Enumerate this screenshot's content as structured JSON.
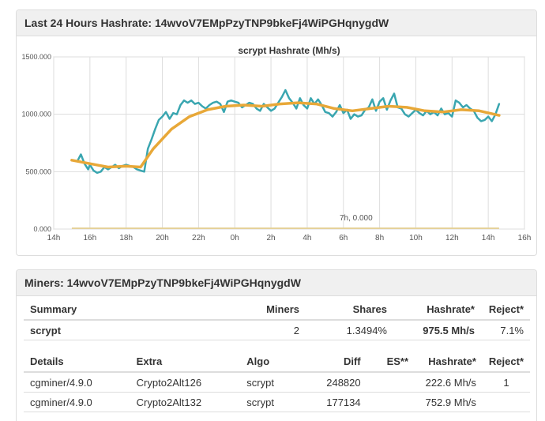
{
  "hashrate_panel": {
    "title": "Last 24 Hours Hashrate: 14wvoV7EMpPzyTNP9bkeFj4WiPGHqnygdW"
  },
  "miners_panel": {
    "title": "Miners: 14wvoV7EMpPzyTNP9bkeFj4WiPGHqnygdW",
    "summary_headers": [
      "Summary",
      "Miners",
      "Shares",
      "Hashrate*",
      "Reject*"
    ],
    "summary_row": {
      "name": "scrypt",
      "miners": "2",
      "shares": "1.3494%",
      "hashrate": "975.5 Mh/s",
      "reject": "7.1%"
    },
    "detail_headers": [
      "Details",
      "Extra",
      "Algo",
      "Diff",
      "ES**",
      "Hashrate*",
      "Reject*"
    ],
    "detail_rows": [
      {
        "details": "cgminer/4.9.0",
        "extra": "Crypto2Alt126",
        "algo": "scrypt",
        "diff": "248820",
        "es": "",
        "hashrate": "222.6 Mh/s",
        "reject": "1"
      },
      {
        "details": "cgminer/4.9.0",
        "extra": "Crypto2Alt132",
        "algo": "scrypt",
        "diff": "177134",
        "es": "",
        "hashrate": "752.9 Mh/s",
        "reject": ""
      }
    ]
  },
  "chart_data": {
    "type": "line",
    "title": "scrypt Hashrate (Mh/s)",
    "xlim": [
      14,
      40
    ],
    "ylim": [
      0,
      1500
    ],
    "x_ticks": [
      "14h",
      "16h",
      "18h",
      "20h",
      "22h",
      "0h",
      "2h",
      "4h",
      "6h",
      "8h",
      "10h",
      "12h",
      "14h",
      "16h"
    ],
    "y_ticks": [
      "0.000",
      "500.000",
      "1000.000",
      "1500.000"
    ],
    "grid": true,
    "annotation": {
      "text": "7h, 0.000",
      "x": 30.7,
      "y": 0
    },
    "colors": {
      "series": "#3aa6b0",
      "average": "#e8a838",
      "zero": "#e5d29a"
    },
    "series": [
      {
        "values": [
          [
            15,
            600
          ],
          [
            15.3,
            590
          ],
          [
            15.5,
            650
          ],
          [
            15.7,
            570
          ],
          [
            15.9,
            520
          ],
          [
            16,
            560
          ],
          [
            16.2,
            510
          ],
          [
            16.4,
            490
          ],
          [
            16.6,
            500
          ],
          [
            16.8,
            540
          ],
          [
            17,
            520
          ],
          [
            17.2,
            540
          ],
          [
            17.4,
            560
          ],
          [
            17.6,
            530
          ],
          [
            17.8,
            550
          ],
          [
            18,
            560
          ],
          [
            18.2,
            550
          ],
          [
            18.4,
            540
          ],
          [
            18.6,
            520
          ],
          [
            18.8,
            510
          ],
          [
            19,
            500
          ],
          [
            19.2,
            700
          ],
          [
            19.4,
            780
          ],
          [
            19.6,
            870
          ],
          [
            19.8,
            950
          ],
          [
            20,
            980
          ],
          [
            20.2,
            1020
          ],
          [
            20.4,
            960
          ],
          [
            20.6,
            1010
          ],
          [
            20.8,
            1000
          ],
          [
            21,
            1080
          ],
          [
            21.2,
            1120
          ],
          [
            21.4,
            1100
          ],
          [
            21.6,
            1120
          ],
          [
            21.8,
            1090
          ],
          [
            22,
            1100
          ],
          [
            22.2,
            1070
          ],
          [
            22.4,
            1050
          ],
          [
            22.6,
            1080
          ],
          [
            22.8,
            1100
          ],
          [
            23,
            1110
          ],
          [
            23.2,
            1090
          ],
          [
            23.4,
            1020
          ],
          [
            23.6,
            1110
          ],
          [
            23.8,
            1120
          ],
          [
            24,
            1110
          ],
          [
            24.2,
            1100
          ],
          [
            24.4,
            1060
          ],
          [
            24.6,
            1080
          ],
          [
            24.8,
            1100
          ],
          [
            25,
            1090
          ],
          [
            25.2,
            1050
          ],
          [
            25.4,
            1030
          ],
          [
            25.6,
            1090
          ],
          [
            25.8,
            1060
          ],
          [
            26,
            1030
          ],
          [
            26.2,
            1050
          ],
          [
            26.4,
            1100
          ],
          [
            26.6,
            1150
          ],
          [
            26.8,
            1210
          ],
          [
            27,
            1140
          ],
          [
            27.2,
            1100
          ],
          [
            27.4,
            1050
          ],
          [
            27.6,
            1140
          ],
          [
            27.8,
            1080
          ],
          [
            28,
            1050
          ],
          [
            28.2,
            1140
          ],
          [
            28.4,
            1090
          ],
          [
            28.6,
            1130
          ],
          [
            28.8,
            1080
          ],
          [
            29,
            1020
          ],
          [
            29.2,
            1010
          ],
          [
            29.4,
            980
          ],
          [
            29.6,
            1020
          ],
          [
            29.8,
            1080
          ],
          [
            30,
            1010
          ],
          [
            30.2,
            1040
          ],
          [
            30.4,
            960
          ],
          [
            30.6,
            1000
          ],
          [
            30.8,
            980
          ],
          [
            31,
            990
          ],
          [
            31.2,
            1040
          ],
          [
            31.4,
            1060
          ],
          [
            31.6,
            1130
          ],
          [
            31.8,
            1030
          ],
          [
            32,
            1110
          ],
          [
            32.2,
            1140
          ],
          [
            32.4,
            1040
          ],
          [
            32.6,
            1120
          ],
          [
            32.8,
            1180
          ],
          [
            33,
            1060
          ],
          [
            33.2,
            1050
          ],
          [
            33.4,
            1000
          ],
          [
            33.6,
            980
          ],
          [
            33.8,
            1010
          ],
          [
            34,
            1040
          ],
          [
            34.2,
            1010
          ],
          [
            34.4,
            990
          ],
          [
            34.6,
            1030
          ],
          [
            34.8,
            1000
          ],
          [
            35,
            1020
          ],
          [
            35.2,
            990
          ],
          [
            35.4,
            1050
          ],
          [
            35.6,
            1000
          ],
          [
            35.8,
            1010
          ],
          [
            36,
            980
          ],
          [
            36.2,
            1120
          ],
          [
            36.4,
            1100
          ],
          [
            36.6,
            1060
          ],
          [
            36.8,
            1080
          ],
          [
            37,
            1050
          ],
          [
            37.2,
            1030
          ],
          [
            37.4,
            970
          ],
          [
            37.6,
            940
          ],
          [
            37.8,
            950
          ],
          [
            38,
            980
          ],
          [
            38.2,
            940
          ],
          [
            38.4,
            1000
          ],
          [
            38.6,
            1090
          ]
        ]
      },
      {
        "values": [
          [
            15,
            600
          ],
          [
            16,
            570
          ],
          [
            17,
            540
          ],
          [
            18,
            548
          ],
          [
            18.8,
            540
          ],
          [
            19.5,
            700
          ],
          [
            20.5,
            870
          ],
          [
            21.5,
            980
          ],
          [
            22.5,
            1040
          ],
          [
            23.5,
            1070
          ],
          [
            24.5,
            1080
          ],
          [
            25.5,
            1070
          ],
          [
            26.5,
            1090
          ],
          [
            27.5,
            1100
          ],
          [
            28.5,
            1090
          ],
          [
            29.5,
            1050
          ],
          [
            30.5,
            1030
          ],
          [
            31.5,
            1050
          ],
          [
            32.5,
            1070
          ],
          [
            33.5,
            1060
          ],
          [
            34.5,
            1030
          ],
          [
            35.5,
            1020
          ],
          [
            36.5,
            1040
          ],
          [
            37.5,
            1030
          ],
          [
            38.6,
            990
          ]
        ]
      }
    ]
  }
}
